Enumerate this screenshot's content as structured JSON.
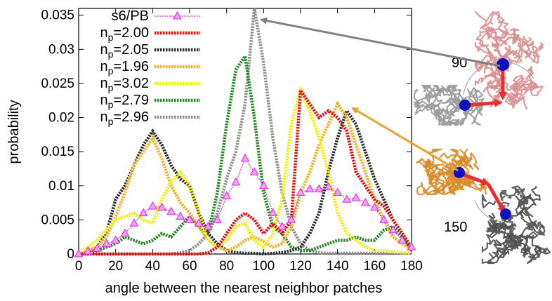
{
  "chart_data": {
    "type": "line",
    "xlabel": "angle between the nearest neighbor patches",
    "ylabel": "probability",
    "xlim": [
      0,
      180
    ],
    "ylim": [
      0,
      0.036
    ],
    "xticks": [
      0,
      20,
      40,
      60,
      80,
      100,
      120,
      140,
      160,
      180
    ],
    "yticks": [
      0,
      0.005,
      0.01,
      0.015,
      0.02,
      0.025,
      0.03,
      0.035
    ],
    "ytick_labels": [
      "0",
      "0.005",
      "0.01",
      "0.015",
      "0.02",
      "0.025",
      "0.03",
      "0.035"
    ],
    "grid": false,
    "legend": "top-left",
    "x": [
      0,
      5,
      10,
      15,
      20,
      25,
      30,
      35,
      40,
      45,
      50,
      55,
      60,
      65,
      70,
      75,
      80,
      85,
      90,
      95,
      100,
      105,
      110,
      115,
      120,
      125,
      130,
      135,
      140,
      145,
      150,
      155,
      160,
      165,
      170,
      175,
      180
    ],
    "series": [
      {
        "name": "s6/PB",
        "color": "#e020e0",
        "style": "markers",
        "values": [
          0,
          0.0004,
          0.0008,
          0.0015,
          0.002,
          0.003,
          0.0045,
          0.006,
          0.007,
          0.0068,
          0.0062,
          0.0055,
          0.005,
          0.0045,
          0.004,
          0.005,
          0.0085,
          0.0105,
          0.014,
          0.012,
          0.01,
          0.006,
          0.004,
          0.005,
          0.009,
          0.0095,
          0.0095,
          0.0098,
          0.009,
          0.008,
          0.0082,
          0.0075,
          0.0068,
          0.005,
          0.0035,
          0.002,
          0.001
        ]
      },
      {
        "name": "2.00",
        "color": "#e01010",
        "values": [
          0,
          0,
          0,
          0,
          0,
          0,
          0,
          0,
          0,
          0,
          0,
          0,
          0,
          0,
          0.0002,
          0.001,
          0.003,
          0.005,
          0.006,
          0.005,
          0.003,
          0.0045,
          0.003,
          0.005,
          0.024,
          0.022,
          0.02,
          0.021,
          0.02,
          0.018,
          0.012,
          0.01,
          0.008,
          0.007,
          0.005,
          0.003,
          0.001
        ]
      },
      {
        "name": "2.05",
        "color": "#303030",
        "values": [
          0,
          0.0003,
          0.001,
          0.003,
          0.008,
          0.01,
          0.013,
          0.016,
          0.018,
          0.016,
          0.013,
          0.011,
          0.01,
          0.006,
          0.003,
          0.0015,
          0.0005,
          0.0002,
          0.0001,
          0.0001,
          0,
          0.0001,
          0.0002,
          0.0005,
          0.001,
          0.003,
          0.006,
          0.012,
          0.017,
          0.021,
          0.019,
          0.015,
          0.011,
          0.008,
          0.005,
          0.003,
          0.0005
        ]
      },
      {
        "name": "1.96",
        "color": "#f0b020",
        "values": [
          0,
          0.0005,
          0.001,
          0.0025,
          0.0055,
          0.009,
          0.013,
          0.015,
          0.017,
          0.014,
          0.01,
          0.0075,
          0.006,
          0.004,
          0.002,
          0.001,
          0.0005,
          0.001,
          0.002,
          0.0025,
          0.0018,
          0.001,
          0.0015,
          0.004,
          0.009,
          0.012,
          0.016,
          0.019,
          0.022,
          0.02,
          0.016,
          0.012,
          0.008,
          0.005,
          0.0025,
          0.0015,
          0.0005
        ]
      },
      {
        "name": "3.02",
        "color": "#f0f000",
        "values": [
          0,
          0.001,
          0.002,
          0.0035,
          0.005,
          0.0055,
          0.006,
          0.005,
          0.0045,
          0.008,
          0.0105,
          0.012,
          0.01,
          0.006,
          0.002,
          0.001,
          0.002,
          0.004,
          0.0045,
          0.002,
          0.001,
          0.003,
          0.008,
          0.019,
          0.024,
          0.021,
          0.017,
          0.012,
          0.006,
          0.003,
          0.002,
          0.001,
          0.0005,
          0.0005,
          0.0003,
          0.0002,
          0.0001
        ]
      },
      {
        "name": "2.79",
        "color": "#2a8a2a",
        "values": [
          0,
          0,
          0.0005,
          0.001,
          0.0015,
          0.0025,
          0.002,
          0.0015,
          0.002,
          0.003,
          0.0025,
          0.004,
          0.0055,
          0.004,
          0.003,
          0.009,
          0.019,
          0.027,
          0.029,
          0.02,
          0.009,
          0.004,
          0.003,
          0.001,
          0.0005,
          0.0005,
          0.001,
          0.0015,
          0.002,
          0.002,
          0.0025,
          0.002,
          0.002,
          0.0035,
          0.004,
          0.0025,
          0.0005
        ]
      },
      {
        "name": "2.96",
        "color": "#909090",
        "values": [
          0,
          0,
          0,
          0,
          0,
          0,
          0,
          0,
          0,
          0,
          0,
          0.0002,
          0.0005,
          0.0015,
          0.003,
          0.006,
          0.011,
          0.015,
          0.022,
          0.036,
          0.028,
          0.017,
          0.009,
          0.004,
          0.0015,
          0.0005,
          0.0002,
          0.0001,
          0.0001,
          0.0001,
          0.0001,
          0.0001,
          0.0001,
          0.0001,
          0.0001,
          0.0001,
          0.0001
        ]
      }
    ]
  },
  "legend_prefix": "n",
  "legend_subscript": "p",
  "annotations": {
    "angle_top": "90",
    "angle_bottom": "150"
  },
  "colors": {
    "arrow_top": "#808080",
    "arrow_bottom": "#e8a030",
    "rod": "#e83030",
    "patch": "#1010c0",
    "chain_pink": "#d89090",
    "chain_gray": "#9a9a9a",
    "chain_orange": "#d88a28",
    "chain_dark": "#505050"
  }
}
